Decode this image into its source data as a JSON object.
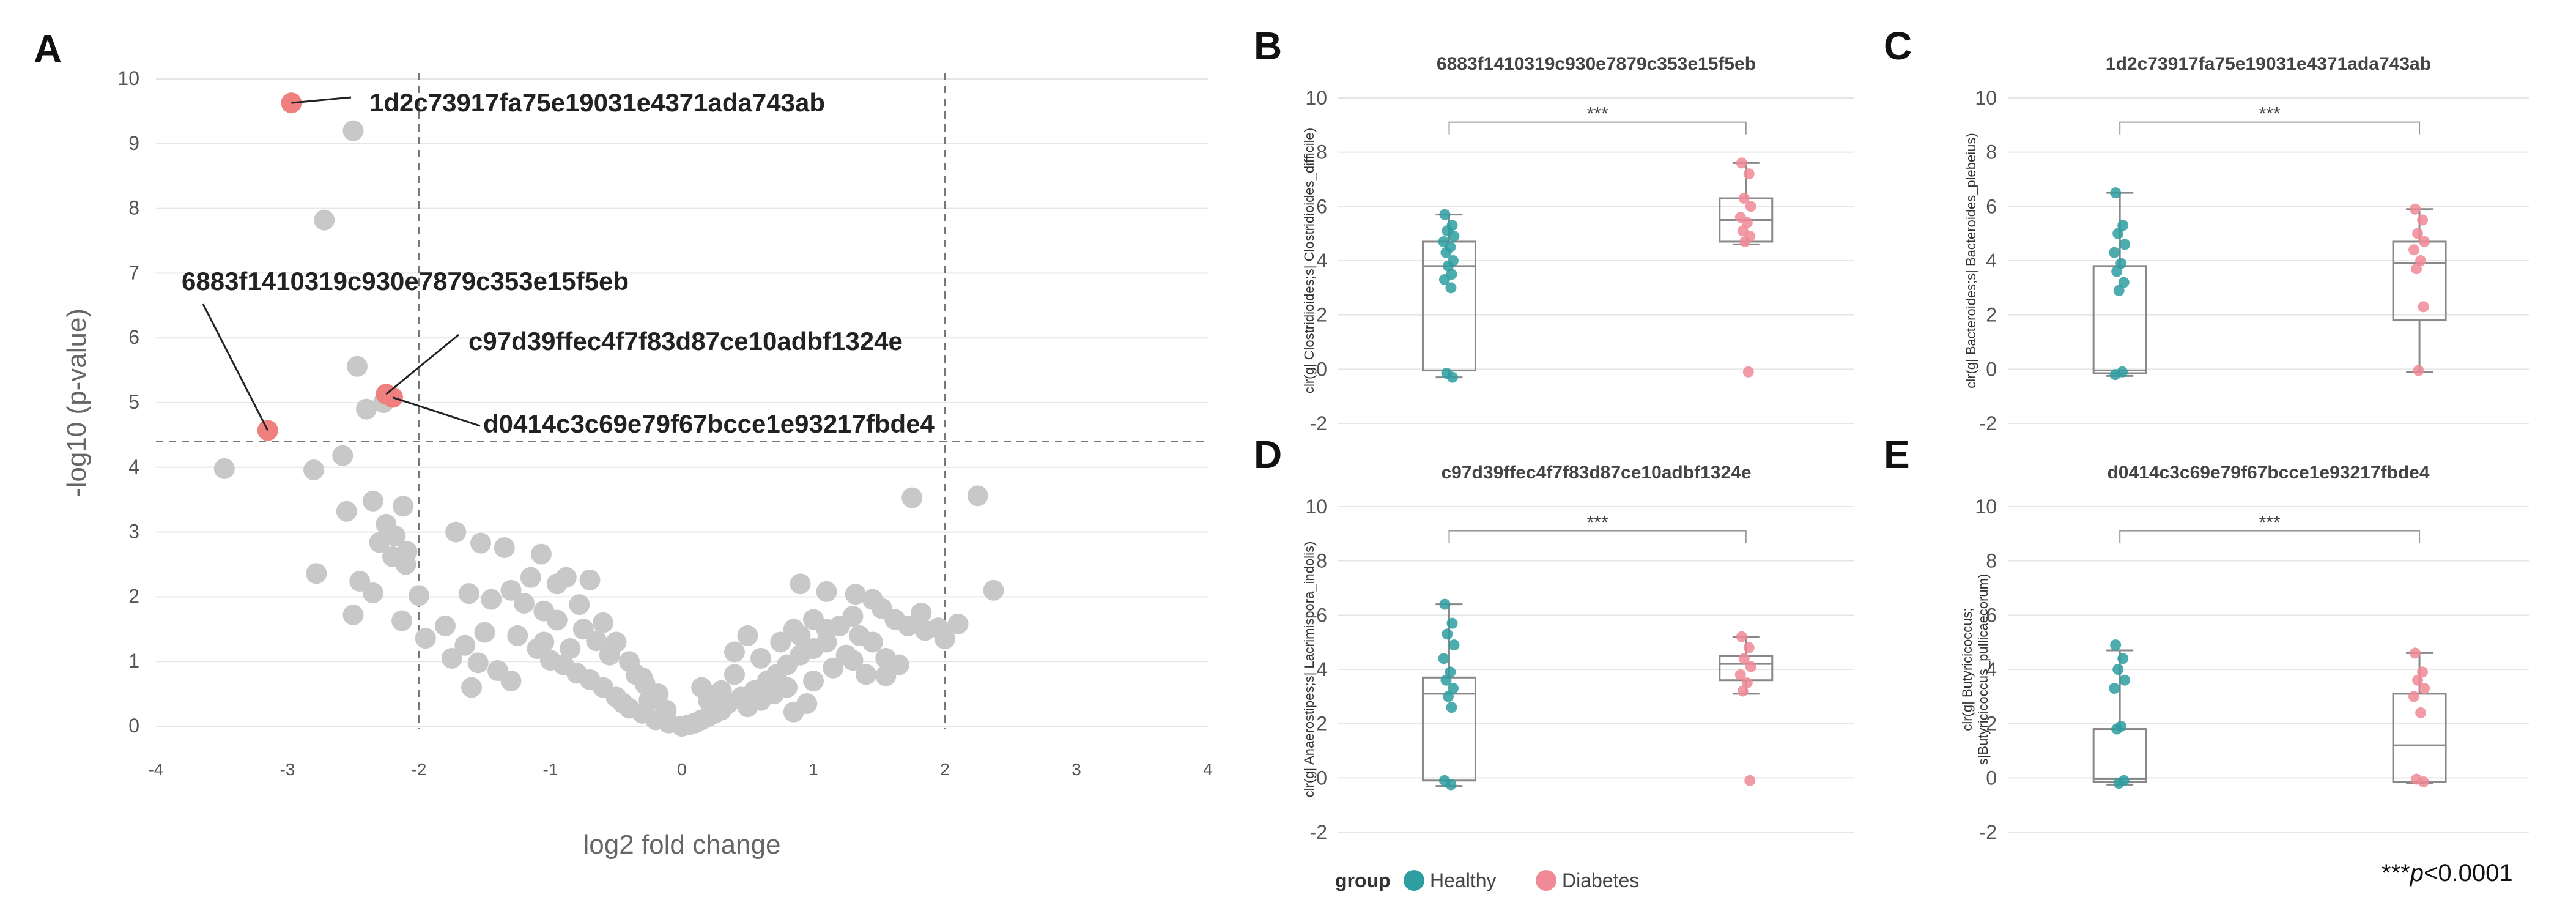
{
  "panel_letters": [
    "A",
    "B",
    "C",
    "D",
    "E"
  ],
  "colors": {
    "background_point": "#c8c8c8",
    "highlight_point": "#f08080",
    "healthy": "#2e9ea0",
    "diabetes": "#f08a96",
    "box_line": "#888888",
    "grid": "#e6e6e6",
    "threshold": "#777777"
  },
  "chart_data": [
    {
      "id": "A",
      "type": "scatter",
      "title": "",
      "xlabel": "log2 fold change",
      "ylabel": "-log10 (p-value)",
      "xlim": [
        -4,
        4
      ],
      "ylim": [
        0,
        10
      ],
      "x_ticks": [
        "-4",
        "-3",
        "-2",
        "-1",
        "0",
        "1",
        "2",
        "3",
        "4"
      ],
      "y_ticks": [
        "0",
        "1",
        "2",
        "3",
        "4",
        "5",
        "6",
        "7",
        "8",
        "9",
        "10"
      ],
      "thresholds": {
        "x": [
          -2,
          2
        ],
        "y": 4.4
      },
      "highlighted": [
        {
          "label": "1d2c73917fa75e19031e4371ada743ab",
          "x": -2.97,
          "y": 9.63
        },
        {
          "label": "6883f1410319c930e7879c353e15f5eb",
          "x": -3.15,
          "y": 4.57
        },
        {
          "label": "c97d39ffec4f7f83d87ce10adbf1324e",
          "x": -2.25,
          "y": 5.13
        },
        {
          "label": "d0414c3c69e79f67bcce1e93217fbde4",
          "x": -2.2,
          "y": 5.08
        }
      ],
      "points": [
        [
          -2.5,
          9.2
        ],
        [
          -2.72,
          7.82
        ],
        [
          -2.47,
          5.56
        ],
        [
          -2.4,
          4.9
        ],
        [
          -2.27,
          5.0
        ],
        [
          -2.58,
          4.18
        ],
        [
          -3.48,
          3.98
        ],
        [
          -2.8,
          3.96
        ],
        [
          -2.35,
          3.48
        ],
        [
          -2.12,
          3.4
        ],
        [
          -2.25,
          3.12
        ],
        [
          -2.55,
          3.32
        ],
        [
          -2.18,
          2.94
        ],
        [
          -2.3,
          2.84
        ],
        [
          -2.09,
          2.7
        ],
        [
          -2.2,
          2.62
        ],
        [
          -2.78,
          2.36
        ],
        [
          -2.45,
          2.24
        ],
        [
          -2.35,
          2.06
        ],
        [
          -2.1,
          2.5
        ],
        [
          -2.0,
          2.02
        ],
        [
          -2.5,
          1.72
        ],
        [
          -2.13,
          1.63
        ],
        [
          -1.95,
          1.36
        ],
        [
          -1.72,
          3.0
        ],
        [
          -1.53,
          2.83
        ],
        [
          -1.35,
          2.76
        ],
        [
          -1.07,
          2.66
        ],
        [
          -0.88,
          2.3
        ],
        [
          -0.7,
          2.26
        ],
        [
          -0.78,
          1.88
        ],
        [
          -1.62,
          2.05
        ],
        [
          -1.45,
          1.96
        ],
        [
          -1.8,
          1.55
        ],
        [
          -1.65,
          1.25
        ],
        [
          -1.4,
          0.86
        ],
        [
          -1.6,
          0.6
        ],
        [
          -1.3,
          0.7
        ],
        [
          -1.1,
          1.2
        ],
        [
          -1.0,
          1.02
        ],
        [
          -0.9,
          0.95
        ],
        [
          -0.8,
          0.82
        ],
        [
          -0.7,
          0.72
        ],
        [
          -0.6,
          0.6
        ],
        [
          -0.5,
          0.45
        ],
        [
          -0.45,
          0.36
        ],
        [
          -0.4,
          0.28
        ],
        [
          -0.3,
          0.2
        ],
        [
          -0.2,
          0.1
        ],
        [
          -0.1,
          0.05
        ],
        [
          -0.18,
          0.5
        ],
        [
          -0.28,
          0.65
        ],
        [
          -0.35,
          0.8
        ],
        [
          -0.55,
          1.1
        ],
        [
          -0.65,
          1.32
        ],
        [
          -0.75,
          1.5
        ],
        [
          -0.95,
          1.64
        ],
        [
          -1.05,
          1.78
        ],
        [
          -1.2,
          1.9
        ],
        [
          -1.3,
          2.1
        ],
        [
          -1.15,
          2.3
        ],
        [
          -0.95,
          2.2
        ],
        [
          -0.6,
          1.6
        ],
        [
          -0.5,
          1.3
        ],
        [
          -0.4,
          1.0
        ],
        [
          -0.3,
          0.75
        ],
        [
          -0.25,
          0.4
        ],
        [
          -0.12,
          0.25
        ],
        [
          -1.5,
          1.45
        ],
        [
          -1.25,
          1.4
        ],
        [
          -1.05,
          1.3
        ],
        [
          -0.85,
          1.2
        ],
        [
          -1.75,
          1.05
        ],
        [
          -1.55,
          0.98
        ],
        [
          0.0,
          0.0
        ],
        [
          0.05,
          0.02
        ],
        [
          0.1,
          0.05
        ],
        [
          0.15,
          0.1
        ],
        [
          0.2,
          0.15
        ],
        [
          0.25,
          0.2
        ],
        [
          0.3,
          0.25
        ],
        [
          0.35,
          0.35
        ],
        [
          0.45,
          0.45
        ],
        [
          0.55,
          0.55
        ],
        [
          0.65,
          0.7
        ],
        [
          0.72,
          0.8
        ],
        [
          0.8,
          0.95
        ],
        [
          0.9,
          1.1
        ],
        [
          1.0,
          1.2
        ],
        [
          1.1,
          1.3
        ],
        [
          0.5,
          0.3
        ],
        [
          0.6,
          0.4
        ],
        [
          0.7,
          0.5
        ],
        [
          0.8,
          0.6
        ],
        [
          0.85,
          1.5
        ],
        [
          0.75,
          1.3
        ],
        [
          0.9,
          1.4
        ],
        [
          1.0,
          1.65
        ],
        [
          1.1,
          1.5
        ],
        [
          1.2,
          1.55
        ],
        [
          1.3,
          1.7
        ],
        [
          1.35,
          1.4
        ],
        [
          1.45,
          1.3
        ],
        [
          1.25,
          1.1
        ],
        [
          1.15,
          0.9
        ],
        [
          1.0,
          0.7
        ],
        [
          0.95,
          0.35
        ],
        [
          0.6,
          1.05
        ],
        [
          0.4,
          0.8
        ],
        [
          0.3,
          0.55
        ],
        [
          0.2,
          0.4
        ],
        [
          0.9,
          2.2
        ],
        [
          1.1,
          2.08
        ],
        [
          1.32,
          2.04
        ],
        [
          1.45,
          1.96
        ],
        [
          1.52,
          1.82
        ],
        [
          1.62,
          1.65
        ],
        [
          1.72,
          1.55
        ],
        [
          1.85,
          1.48
        ],
        [
          1.95,
          1.52
        ],
        [
          1.3,
          1.02
        ],
        [
          1.55,
          1.05
        ],
        [
          1.65,
          0.95
        ],
        [
          1.4,
          0.8
        ],
        [
          1.55,
          0.78
        ],
        [
          0.85,
          0.22
        ],
        [
          1.75,
          3.53
        ],
        [
          2.25,
          3.56
        ],
        [
          2.37,
          2.1
        ],
        [
          2.1,
          1.58
        ],
        [
          2.0,
          1.35
        ],
        [
          1.82,
          1.75
        ],
        [
          0.5,
          1.4
        ],
        [
          0.4,
          1.15
        ],
        [
          0.15,
          0.6
        ]
      ]
    },
    {
      "id": "B",
      "type": "box",
      "title": "6883f1410319c930e7879c353e15f5eb",
      "ylabel": "clr(g| Clostridioides;s| Clostridioides_difficile)",
      "ylim": [
        -2,
        10
      ],
      "y_ticks": [
        "-2",
        "0",
        "2",
        "4",
        "6",
        "8",
        "10"
      ],
      "significance": "***",
      "groups": [
        {
          "name": "Healthy",
          "min": -0.3,
          "q1": -0.05,
          "median": 3.8,
          "q3": 4.7,
          "max": 5.7,
          "points": [
            5.7,
            5.3,
            5.1,
            4.9,
            4.7,
            4.5,
            4.3,
            4.0,
            3.8,
            3.5,
            3.3,
            3.0,
            -0.15,
            -0.3
          ]
        },
        {
          "name": "Diabetes",
          "min": 4.6,
          "q1": 4.7,
          "median": 5.5,
          "q3": 6.3,
          "max": 7.6,
          "points": [
            7.6,
            7.2,
            6.3,
            6.0,
            5.6,
            5.4,
            5.1,
            4.9,
            4.7,
            -0.1
          ]
        }
      ]
    },
    {
      "id": "C",
      "type": "box",
      "title": "1d2c73917fa75e19031e4371ada743ab",
      "ylabel": "clr(g| Bacteroides;s| Bacteroides_plebeius)",
      "ylim": [
        -2,
        10
      ],
      "y_ticks": [
        "-2",
        "0",
        "2",
        "4",
        "6",
        "8",
        "10"
      ],
      "significance": "***",
      "groups": [
        {
          "name": "Healthy",
          "min": -0.25,
          "q1": -0.15,
          "median": -0.05,
          "q3": 3.8,
          "max": 6.5,
          "points": [
            6.5,
            5.3,
            5.0,
            4.6,
            4.3,
            3.9,
            3.6,
            3.2,
            2.9,
            -0.1,
            -0.2
          ]
        },
        {
          "name": "Diabetes",
          "min": -0.1,
          "q1": 1.8,
          "median": 3.9,
          "q3": 4.7,
          "max": 5.9,
          "points": [
            5.9,
            5.5,
            5.0,
            4.7,
            4.4,
            4.0,
            3.7,
            2.3,
            -0.05
          ]
        }
      ]
    },
    {
      "id": "D",
      "type": "box",
      "title": "c97d39ffec4f7f83d87ce10adbf1324e",
      "ylabel": "clr(g| Anaerostipes;s| Lacrimispora_indolis)",
      "ylim": [
        -2,
        10
      ],
      "y_ticks": [
        "-2",
        "0",
        "2",
        "4",
        "6",
        "8",
        "10"
      ],
      "significance": "***",
      "groups": [
        {
          "name": "Healthy",
          "min": -0.3,
          "q1": -0.1,
          "median": 3.1,
          "q3": 3.7,
          "max": 6.4,
          "points": [
            6.4,
            5.7,
            5.3,
            4.9,
            4.4,
            3.9,
            3.6,
            3.3,
            3.0,
            2.6,
            -0.1,
            -0.25
          ]
        },
        {
          "name": "Diabetes",
          "min": 3.1,
          "q1": 3.6,
          "median": 4.2,
          "q3": 4.5,
          "max": 5.2,
          "points": [
            5.2,
            4.8,
            4.4,
            4.1,
            3.8,
            3.5,
            3.2,
            -0.1
          ]
        }
      ]
    },
    {
      "id": "E",
      "type": "box",
      "title": "d0414c3c69e79f67bcce1e93217fbde4",
      "ylabel": "clr(g| Butyricicoccus; s|Butyricicoccus_pullicaecorum)",
      "ylim": [
        -2,
        10
      ],
      "y_ticks": [
        "-2",
        "0",
        "2",
        "4",
        "6",
        "8",
        "10"
      ],
      "significance": "***",
      "groups": [
        {
          "name": "Healthy",
          "min": -0.25,
          "q1": -0.15,
          "median": -0.05,
          "q3": 1.8,
          "max": 4.7,
          "points": [
            4.9,
            4.4,
            4.0,
            3.6,
            3.3,
            1.9,
            1.8,
            -0.1,
            -0.2
          ]
        },
        {
          "name": "Diabetes",
          "min": -0.2,
          "q1": -0.15,
          "median": 1.2,
          "q3": 3.1,
          "max": 4.6,
          "points": [
            4.6,
            3.9,
            3.6,
            3.3,
            3.0,
            2.4,
            -0.05,
            -0.15
          ]
        }
      ]
    }
  ],
  "legend": {
    "title": "group",
    "items": [
      {
        "label": "Healthy",
        "color": "#2e9ea0"
      },
      {
        "label": "Diabetes",
        "color": "#f08a96"
      }
    ]
  },
  "p_note": {
    "stars": "***",
    "p": "p",
    "rest": "<0.0001"
  }
}
